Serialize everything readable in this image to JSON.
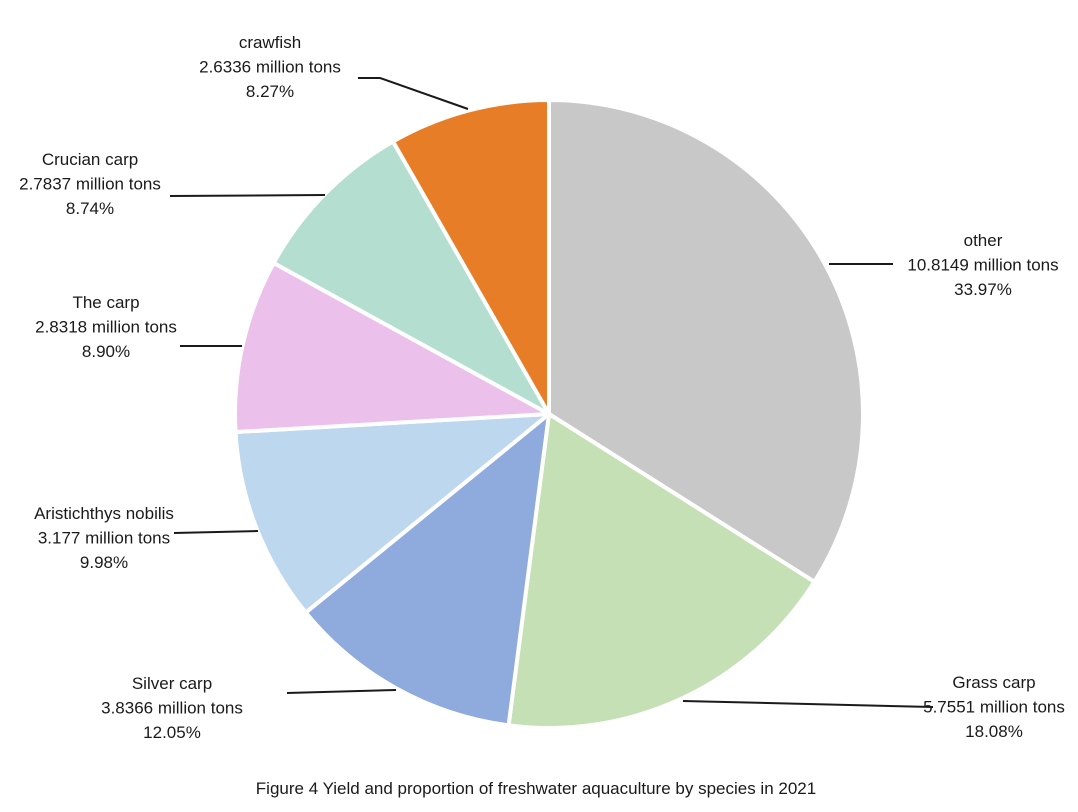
{
  "chart_data": {
    "type": "pie",
    "title": "Figure 4 Yield and proportion of freshwater aquaculture by species in 2021",
    "unit": "million tons",
    "slices": [
      {
        "name": "other",
        "value": 10.8149,
        "value_label": "10.8149 million tons",
        "percent": 33.97,
        "percent_label": "33.97%",
        "color": "#c8c8c8"
      },
      {
        "name": "Grass carp",
        "value": 5.7551,
        "value_label": "5.7551 million tons",
        "percent": 18.08,
        "percent_label": "18.08%",
        "color": "#c5e0b4"
      },
      {
        "name": "Silver carp",
        "value": 3.8366,
        "value_label": "3.8366 million tons",
        "percent": 12.05,
        "percent_label": "12.05%",
        "color": "#8faadc"
      },
      {
        "name": "Aristichthys nobilis",
        "value": 3.177,
        "value_label": "3.177 million tons",
        "percent": 9.98,
        "percent_label": "9.98%",
        "color": "#bdd7ee"
      },
      {
        "name": "The carp",
        "value": 2.8318,
        "value_label": "2.8318 million tons",
        "percent": 8.9,
        "percent_label": "8.90%",
        "color": "#ebc0eb"
      },
      {
        "name": "Crucian carp",
        "value": 2.7837,
        "value_label": "2.7837 million tons",
        "percent": 8.74,
        "percent_label": "8.74%",
        "color": "#b3ded0"
      },
      {
        "name": "crawfish",
        "value": 2.6336,
        "value_label": "2.6336 million tons",
        "percent": 8.27,
        "percent_label": "8.27%",
        "color": "#e87d27"
      }
    ],
    "start_angle": "12 o'clock",
    "direction": "clockwise"
  }
}
